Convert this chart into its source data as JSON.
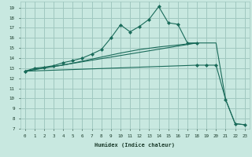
{
  "bg_color": "#c8e8e0",
  "grid_color": "#a0c8c0",
  "line_color": "#1a6b5a",
  "xlabel": "Humidex (Indice chaleur)",
  "xlim": [
    -0.5,
    23.5
  ],
  "ylim": [
    7,
    19.6
  ],
  "yticks": [
    7,
    8,
    9,
    10,
    11,
    12,
    13,
    14,
    15,
    16,
    17,
    18,
    19
  ],
  "xticks": [
    0,
    1,
    2,
    3,
    4,
    5,
    6,
    7,
    8,
    9,
    10,
    11,
    12,
    13,
    14,
    15,
    16,
    17,
    18,
    19,
    20,
    21,
    22,
    23
  ],
  "line1_x": [
    0,
    1,
    2,
    3,
    4,
    5,
    6,
    7,
    8,
    9,
    10,
    11,
    12,
    13,
    14,
    15,
    16,
    17,
    18
  ],
  "line1_y": [
    12.7,
    13.0,
    13.1,
    13.25,
    13.55,
    13.75,
    14.0,
    14.4,
    14.85,
    16.0,
    17.3,
    16.6,
    17.15,
    17.85,
    19.1,
    17.5,
    17.35,
    15.5,
    15.5
  ],
  "line2_x": [
    0,
    2,
    4,
    6,
    8,
    10,
    12,
    14,
    16,
    18
  ],
  "line2_y": [
    12.7,
    13.05,
    13.3,
    13.7,
    14.1,
    14.5,
    14.85,
    15.1,
    15.3,
    15.5
  ],
  "line3_x": [
    0,
    18,
    19,
    20,
    21,
    22,
    23
  ],
  "line3_y": [
    12.7,
    13.3,
    13.3,
    13.3,
    9.9,
    7.5,
    7.4
  ],
  "line4_x": [
    0,
    18,
    19,
    20,
    21,
    22,
    23
  ],
  "line4_y": [
    12.7,
    15.5,
    15.5,
    15.5,
    9.9,
    7.5,
    7.4
  ]
}
